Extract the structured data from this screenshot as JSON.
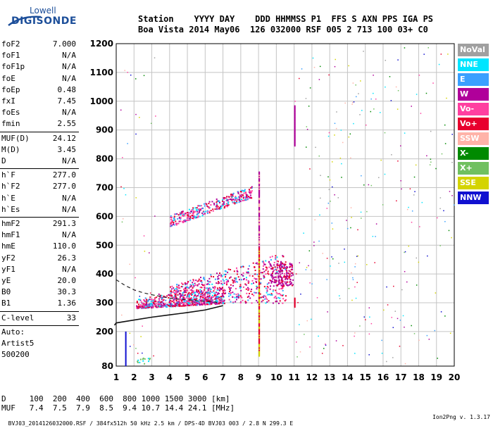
{
  "logo": {
    "line1": "Lowell",
    "line2": "DIGISONDE"
  },
  "header": {
    "labels": "Station    YYYY DAY    DDD HHMMSS P1  FFS S AXN PPS IGA PS",
    "values": "Boa Vista 2014 May06  126 032000 RSF 005 2 713 100 03+ C0"
  },
  "params": [
    {
      "label": "foF2",
      "value": "7.000"
    },
    {
      "label": "foF1",
      "value": "N/A"
    },
    {
      "label": "foF1p",
      "value": "N/A"
    },
    {
      "label": "foE",
      "value": "N/A"
    },
    {
      "label": "foEp",
      "value": "0.48"
    },
    {
      "label": "fxI",
      "value": "7.45"
    },
    {
      "label": "foEs",
      "value": "N/A"
    },
    {
      "label": "fmin",
      "value": "2.55"
    },
    {
      "label": "MUF(D)",
      "value": "24.12"
    },
    {
      "label": "M(D)",
      "value": "3.45"
    },
    {
      "label": "D",
      "value": "N/A"
    },
    {
      "label": "h`F",
      "value": "277.0"
    },
    {
      "label": "h`F2",
      "value": "277.0"
    },
    {
      "label": "h`E",
      "value": "N/A"
    },
    {
      "label": "h`Es",
      "value": "N/A"
    },
    {
      "label": "hmF2",
      "value": "291.3"
    },
    {
      "label": "hmF1",
      "value": "N/A"
    },
    {
      "label": "hmE",
      "value": "110.0"
    },
    {
      "label": "yF2",
      "value": "26.3"
    },
    {
      "label": "yF1",
      "value": "N/A"
    },
    {
      "label": "yE",
      "value": "20.0"
    },
    {
      "label": "B0",
      "value": "30.3"
    },
    {
      "label": "B1",
      "value": "1.36"
    },
    {
      "label": "C-level",
      "value": "33"
    },
    {
      "label": "Auto:",
      "value": ""
    },
    {
      "label": "Artist5",
      "value": ""
    },
    {
      "label": "500200",
      "value": ""
    }
  ],
  "legend": [
    {
      "name": "NoVal",
      "color": "#a0a0a0"
    },
    {
      "name": "NNE",
      "color": "#00e5ff"
    },
    {
      "name": "E",
      "color": "#3aa0ff"
    },
    {
      "name": "W",
      "color": "#b0009a"
    },
    {
      "name": "Vo-",
      "color": "#ff3fa0"
    },
    {
      "name": "Vo+",
      "color": "#e8002e"
    },
    {
      "name": "SSW",
      "color": "#ffb3a8"
    },
    {
      "name": "X-",
      "color": "#008a00"
    },
    {
      "name": "X+",
      "color": "#70c060"
    },
    {
      "name": "SSE",
      "color": "#d4d400"
    },
    {
      "name": "NNW",
      "color": "#1010d0"
    }
  ],
  "d_table": {
    "row_d": "D     100  200  400  600  800 1000 1500 3000 [km]",
    "row_muf": "MUF   7.4  7.5  7.9  8.5  9.4 10.7 14.4 24.1 [MHz]"
  },
  "footer": {
    "left": "BVJ03_2014126032000.RSF / 384fx512h 50 kHz 2.5 km / DPS-4D BVJ03 003 / 2.8 N 299.3 E",
    "right": "Ion2Png v. 1.3.17"
  },
  "chart_data": {
    "type": "scatter",
    "xlim": [
      1,
      20
    ],
    "ylim": [
      80,
      1200
    ],
    "x_ticks": [
      1,
      2,
      3,
      4,
      5,
      6,
      7,
      8,
      9,
      10,
      11,
      12,
      13,
      14,
      15,
      16,
      17,
      18,
      19,
      20
    ],
    "y_ticks": [
      80,
      200,
      300,
      400,
      500,
      600,
      700,
      800,
      900,
      1000,
      1100,
      1200
    ],
    "grid": true,
    "legend_position": "right",
    "scaled_trace": [
      [
        1.0,
        380
      ],
      [
        1.5,
        360
      ],
      [
        2.0,
        345
      ],
      [
        2.5,
        335
      ],
      [
        3.0,
        328
      ],
      [
        4.0,
        316
      ],
      [
        5.0,
        310
      ],
      [
        6.0,
        305
      ],
      [
        6.9,
        300
      ]
    ],
    "true_height_profile": [
      [
        0.0,
        222
      ],
      [
        1.0,
        230
      ],
      [
        2.0,
        240
      ],
      [
        3.0,
        250
      ],
      [
        4.0,
        258
      ],
      [
        5.0,
        266
      ],
      [
        6.0,
        275
      ],
      [
        7.0,
        290
      ]
    ],
    "echo_regions": [
      {
        "name": "F2 trace",
        "x": [
          2.1,
          7.2
        ],
        "y": [
          272,
          370
        ]
      },
      {
        "name": "F2 second-hop trace",
        "x": [
          4.0,
          8.6
        ],
        "y": [
          575,
          720
        ]
      },
      {
        "name": "spread echoes",
        "x": [
          6.0,
          10.5
        ],
        "y": [
          290,
          470
        ]
      }
    ]
  }
}
